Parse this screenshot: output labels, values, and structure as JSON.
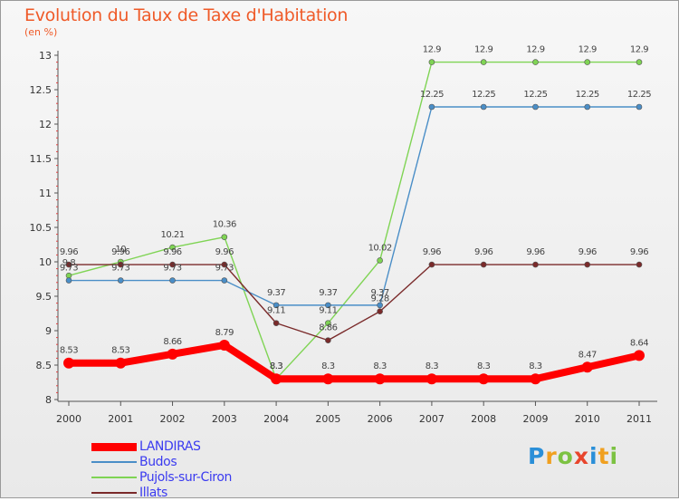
{
  "title": "Evolution du Taux de Taxe d'Habitation",
  "unit_label": "(en %)",
  "logo_text": "Proxiti",
  "chart_data": {
    "type": "line",
    "title": "Evolution du Taux de Taxe d'Habitation",
    "ylabel": "(en %)",
    "xlabel": "",
    "x": [
      "2000",
      "2001",
      "2002",
      "2003",
      "2004",
      "2005",
      "2006",
      "2007",
      "2008",
      "2009",
      "2010",
      "2011"
    ],
    "ylim": [
      8,
      13
    ],
    "yticks": [
      "8",
      "8.5",
      "9",
      "9.5",
      "10",
      "10.5",
      "11",
      "11.5",
      "12",
      "12.5",
      "13"
    ],
    "grid": false,
    "legend_position": "bottom-left",
    "series": [
      {
        "name": "LANDIRAS",
        "color": "#ff0000",
        "values": [
          8.53,
          8.53,
          8.66,
          8.79,
          8.3,
          8.3,
          8.3,
          8.3,
          8.3,
          8.3,
          8.47,
          8.64
        ],
        "labels": [
          "8.53",
          "8.53",
          "8.66",
          "8.79",
          "8.3",
          "8.3",
          "8.3",
          "8.3",
          "8.3",
          "8.3",
          "8.47",
          "8.64"
        ]
      },
      {
        "name": "Budos",
        "color": "#4a8ec7",
        "values": [
          9.73,
          9.73,
          9.73,
          9.73,
          9.37,
          9.37,
          9.37,
          12.25,
          12.25,
          12.25,
          12.25,
          12.25
        ],
        "labels": [
          "9.73",
          "9.73",
          "9.73",
          "9.73",
          "9.37",
          "9.37",
          "9.37",
          "12.25",
          "12.25",
          "12.25",
          "12.25",
          "12.25"
        ]
      },
      {
        "name": "Pujols-sur-Ciron",
        "color": "#7fd454",
        "values": [
          9.8,
          10,
          10.21,
          10.36,
          8.3,
          9.11,
          10.02,
          12.9,
          12.9,
          12.9,
          12.9,
          12.9
        ],
        "labels": [
          "9.8",
          "10",
          "10.21",
          "10.36",
          "8.3",
          "9.11",
          "10.02",
          "12.9",
          "12.9",
          "12.9",
          "12.9",
          "12.9"
        ]
      },
      {
        "name": "Illats",
        "color": "#7a2a2a",
        "values": [
          9.96,
          9.96,
          9.96,
          9.96,
          9.11,
          8.86,
          9.28,
          9.96,
          9.96,
          9.96,
          9.96,
          9.96
        ],
        "labels": [
          "9.96",
          "9.96",
          "9.96",
          "9.96",
          "9.11",
          "8.86",
          "9.28",
          "9.96",
          "9.96",
          "9.96",
          "9.96",
          "9.96"
        ]
      }
    ]
  }
}
